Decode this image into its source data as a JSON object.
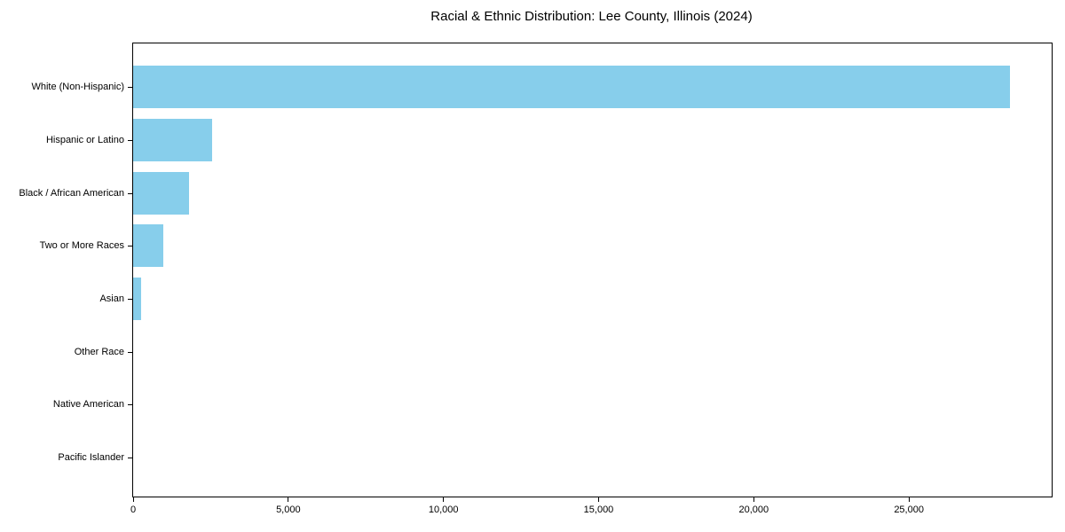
{
  "title": "Racial & Ethnic Distribution: Lee County, Illinois (2024)",
  "chart_data": {
    "type": "bar",
    "orientation": "horizontal",
    "title": "Racial & Ethnic Distribution: Lee County, Illinois (2024)",
    "xlabel": "",
    "ylabel": "",
    "categories": [
      "White (Non-Hispanic)",
      "Hispanic or Latino",
      "Black / African American",
      "Two or More Races",
      "Asian",
      "Other Race",
      "Native American",
      "Pacific Islander"
    ],
    "values": [
      28250,
      2550,
      1800,
      980,
      270,
      0,
      0,
      0
    ],
    "xlim": [
      0,
      29600
    ],
    "x_ticks": [
      0,
      5000,
      10000,
      15000,
      20000,
      25000
    ],
    "x_tick_labels": [
      "0",
      "5,000",
      "10,000",
      "15,000",
      "20,000",
      "25,000"
    ],
    "bar_color": "#87CEEB",
    "axis_color": "#000000",
    "text_color": "#000000",
    "grid": false,
    "legend": null
  }
}
